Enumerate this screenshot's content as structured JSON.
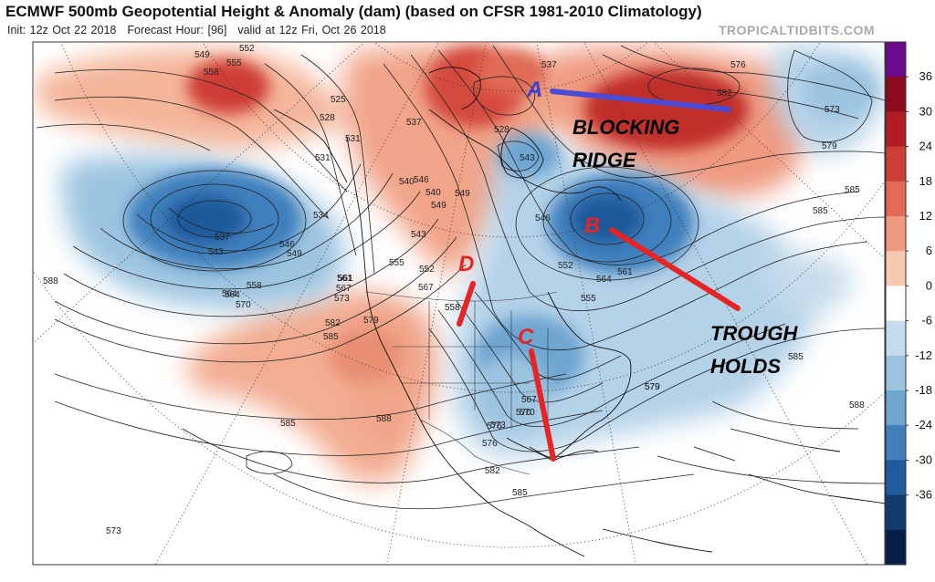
{
  "header": {
    "title": "ECMWF 500mb Geopotential Height & Anomaly (dam) (based on CFSR 1981-2010 Climatology)",
    "init": "Init: 12z Oct 22 2018",
    "forecast_hour": "Forecast Hour: [96]",
    "valid": "valid at 12z Fri, Oct 26 2018",
    "credit": "TROPICALTIDBITS.COM"
  },
  "colorbar": {
    "labels": [
      "36",
      "30",
      "24",
      "18",
      "12",
      "6",
      "0",
      "-6",
      "-12",
      "-18",
      "-24",
      "-30",
      "-36"
    ],
    "colors": [
      "#6b0a8a",
      "#8c0a1e",
      "#b01e24",
      "#cd3e35",
      "#e06a55",
      "#ef9a80",
      "#f8c8b0",
      "#ffffff",
      "#c6dcec",
      "#9cc4e0",
      "#6ea6d2",
      "#3f80bd",
      "#1f5a9c",
      "#103a70",
      "#061f48"
    ]
  },
  "contour_labels": [
    "549",
    "552",
    "555",
    "558",
    "525",
    "528",
    "531",
    "537",
    "540",
    "543",
    "546",
    "549",
    "534",
    "537",
    "543",
    "546",
    "549",
    "552",
    "555",
    "558",
    "561",
    "564",
    "567",
    "570",
    "573",
    "576",
    "579",
    "582",
    "585",
    "588",
    "531",
    "537",
    "528",
    "540",
    "543",
    "546",
    "549",
    "552",
    "555",
    "558",
    "561",
    "564",
    "567",
    "570",
    "573",
    "576",
    "579",
    "582",
    "585",
    "588",
    "585",
    "573",
    "579",
    "585",
    "585",
    "588",
    "582",
    "585",
    "573",
    "576",
    "570",
    "567",
    "564",
    "561",
    "579"
  ],
  "annotations": {
    "point_a": "A",
    "point_b": "B",
    "point_c": "C",
    "point_d": "D",
    "blocking_ridge": [
      "BLOCKING",
      "RIDGE"
    ],
    "trough_holds": [
      "TROUGH",
      "HOLDS"
    ]
  }
}
